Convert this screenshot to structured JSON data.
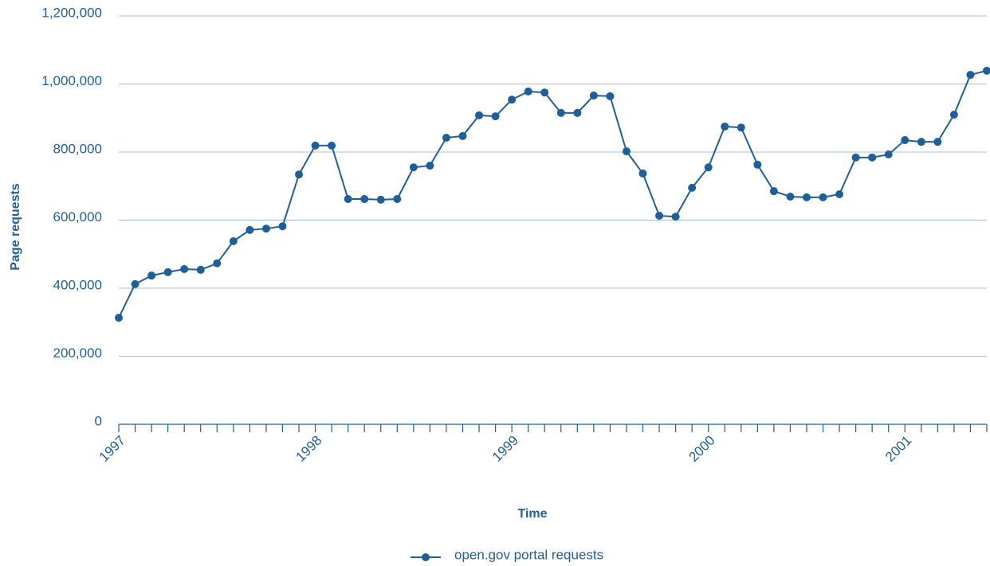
{
  "chart_data": {
    "type": "line",
    "y_label": "Page requests",
    "x_label": "Time",
    "categories": [
      "1997",
      null,
      null,
      null,
      null,
      null,
      null,
      null,
      null,
      null,
      null,
      null,
      "1998",
      null,
      null,
      null,
      null,
      null,
      null,
      null,
      null,
      null,
      null,
      null,
      "1999",
      null,
      null,
      null,
      null,
      null,
      null,
      null,
      null,
      null,
      null,
      null,
      "2000",
      null,
      null,
      null,
      null,
      null,
      null,
      null,
      null,
      null,
      null,
      null,
      "2001",
      null,
      null,
      null,
      null,
      null
    ],
    "series": [
      {
        "name": "open.gov portal requests",
        "color": "#1f5f99",
        "values": [
          313000,
          412000,
          437000,
          447000,
          456000,
          454000,
          473000,
          538000,
          571000,
          575000,
          582000,
          734000,
          819000,
          819000,
          662000,
          662000,
          660000,
          662000,
          755000,
          760000,
          842000,
          847000,
          908000,
          905000,
          954000,
          978000,
          975000,
          915000,
          915000,
          966000,
          964000,
          802000,
          737000,
          613000,
          610000,
          695000,
          755000,
          875000,
          872000,
          763000,
          685000,
          669000,
          667000,
          667000,
          676000,
          784000,
          784000,
          793000,
          835000,
          830000,
          830000,
          910000,
          1027000,
          1039000
        ]
      }
    ],
    "ylim": [
      0,
      1200000
    ],
    "yticks": [
      0,
      {
        "value": 200000,
        "label": "200,000"
      },
      {
        "value": 400000,
        "label": "400,000"
      },
      {
        "value": 600000,
        "label": "600,000"
      },
      {
        "value": 800000,
        "label": "800,000"
      },
      {
        "value": 1000000,
        "label": "1,000,000"
      },
      {
        "value": 1200000,
        "label": "1,200,000"
      }
    ],
    "grid": true,
    "legend": "bottom"
  }
}
